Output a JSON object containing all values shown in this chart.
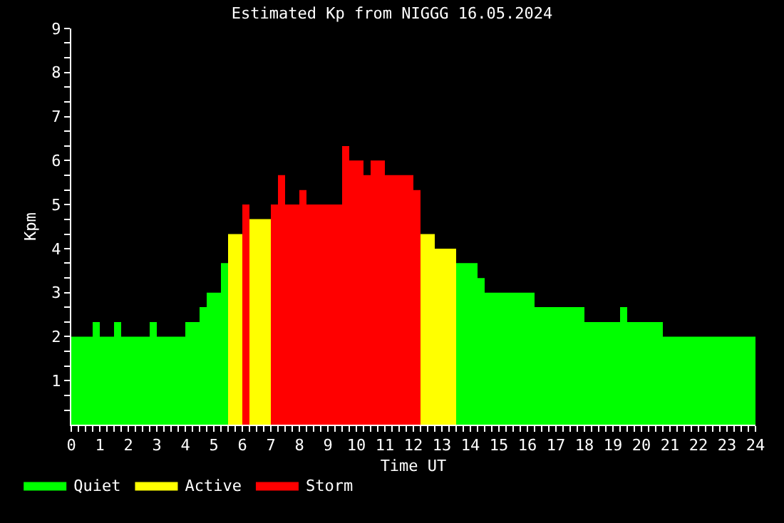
{
  "chart_data": {
    "type": "area",
    "title": "Estimated Kp from NIGGG 16.05.2024",
    "xlabel": "Time UT",
    "ylabel": "Kpm",
    "series": [
      {
        "name": "Quiet",
        "color": "#00ff00",
        "x": [
          0,
          0.75,
          0.75,
          1,
          1,
          1.5,
          1.5,
          1.75,
          1.75,
          2.75,
          2.75,
          3,
          3,
          4,
          4,
          4.5,
          4.5,
          4.75,
          4.75,
          5.25,
          5.25,
          5.5
        ],
        "values": [
          2,
          2,
          2.33,
          2.33,
          2,
          2,
          2.33,
          2.33,
          2,
          2,
          2.33,
          2.33,
          2,
          2,
          2.33,
          2.33,
          2.67,
          2.67,
          3,
          3,
          3.67,
          3.67
        ]
      },
      {
        "name": "Active",
        "color": "#ffff00",
        "x": [
          5.5,
          6
        ],
        "values": [
          4.33,
          4.33
        ]
      },
      {
        "name": "Storm",
        "color": "#ff0000",
        "x": [
          6,
          6.25
        ],
        "values": [
          5,
          5
        ]
      },
      {
        "color": "#ffff00",
        "x": [
          6.25,
          7
        ],
        "values": [
          4.67,
          4.67
        ]
      },
      {
        "color": "#ff0000",
        "x": [
          7,
          7.25,
          7.25,
          7.5,
          7.5,
          8,
          8,
          8.25,
          8.25,
          9.5,
          9.5,
          9.75,
          9.75,
          10.25,
          10.25,
          10.5,
          10.5,
          11,
          11,
          12,
          12,
          12.25
        ],
        "values": [
          5,
          5,
          5.67,
          5.67,
          5,
          5,
          5.33,
          5.33,
          5,
          5,
          6.33,
          6.33,
          6,
          6,
          5.67,
          5.67,
          6,
          6,
          5.67,
          5.67,
          5.33,
          5.33
        ]
      },
      {
        "color": "#ffff00",
        "x": [
          12.25,
          12.75,
          12.75,
          13.5
        ],
        "values": [
          4.33,
          4.33,
          4,
          4
        ]
      },
      {
        "color": "#00ff00",
        "x": [
          13.5,
          14.25,
          14.25,
          14.5,
          14.5,
          16.25,
          16.25,
          18,
          18,
          19.25,
          19.25,
          19.5,
          19.5,
          20.75,
          20.75,
          24
        ],
        "values": [
          3.67,
          3.67,
          3.33,
          3.33,
          3,
          3,
          2.67,
          2.67,
          2.33,
          2.33,
          2.67,
          2.67,
          2.33,
          2.33,
          2,
          2
        ]
      }
    ],
    "xlim": [
      0,
      24
    ],
    "xticks": [
      0,
      {
        "value": 0.25,
        "label": null
      },
      {
        "value": 0.5,
        "label": null
      },
      {
        "value": 0.75,
        "label": null
      },
      1,
      {
        "value": 1.25,
        "label": null
      },
      {
        "value": 1.5,
        "label": null
      },
      {
        "value": 1.75,
        "label": null
      },
      2,
      {
        "value": 2.25,
        "label": null
      },
      {
        "value": 2.5,
        "label": null
      },
      {
        "value": 2.75,
        "label": null
      },
      3,
      {
        "value": 3.25,
        "label": null
      },
      {
        "value": 3.5,
        "label": null
      },
      {
        "value": 3.75,
        "label": null
      },
      4,
      {
        "value": 4.25,
        "label": null
      },
      {
        "value": 4.5,
        "label": null
      },
      {
        "value": 4.75,
        "label": null
      },
      5,
      {
        "value": 5.25,
        "label": null
      },
      {
        "value": 5.5,
        "label": null
      },
      {
        "value": 5.75,
        "label": null
      },
      6,
      {
        "value": 6.25,
        "label": null
      },
      {
        "value": 6.5,
        "label": null
      },
      {
        "value": 6.75,
        "label": null
      },
      7,
      {
        "value": 7.25,
        "label": null
      },
      {
        "value": 7.5,
        "label": null
      },
      {
        "value": 7.75,
        "label": null
      },
      8,
      {
        "value": 8.25,
        "label": null
      },
      {
        "value": 8.5,
        "label": null
      },
      {
        "value": 8.75,
        "label": null
      },
      9,
      {
        "value": 9.25,
        "label": null
      },
      {
        "value": 9.5,
        "label": null
      },
      {
        "value": 9.75,
        "label": null
      },
      10,
      {
        "value": 10.25,
        "label": null
      },
      {
        "value": 10.5,
        "label": null
      },
      {
        "value": 10.75,
        "label": null
      },
      11,
      {
        "value": 11.25,
        "label": null
      },
      {
        "value": 11.5,
        "label": null
      },
      {
        "value": 11.75,
        "label": null
      },
      12,
      {
        "value": 12.25,
        "label": null
      },
      {
        "value": 12.5,
        "label": null
      },
      {
        "value": 12.75,
        "label": null
      },
      13,
      {
        "value": 13.25,
        "label": null
      },
      {
        "value": 13.5,
        "label": null
      },
      {
        "value": 13.75,
        "label": null
      },
      14,
      {
        "value": 14.25,
        "label": null
      },
      {
        "value": 14.5,
        "label": null
      },
      {
        "value": 14.75,
        "label": null
      },
      15,
      {
        "value": 15.25,
        "label": null
      },
      {
        "value": 15.5,
        "label": null
      },
      {
        "value": 15.75,
        "label": null
      },
      16,
      {
        "value": 16.25,
        "label": null
      },
      {
        "value": 16.5,
        "label": null
      },
      {
        "value": 16.75,
        "label": null
      },
      17,
      {
        "value": 17.25,
        "label": null
      },
      {
        "value": 17.5,
        "label": null
      },
      {
        "value": 17.75,
        "label": null
      },
      18,
      {
        "value": 18.25,
        "label": null
      },
      {
        "value": 18.5,
        "label": null
      },
      {
        "value": 18.75,
        "label": null
      },
      19,
      {
        "value": 19.25,
        "label": null
      },
      {
        "value": 19.5,
        "label": null
      },
      {
        "value": 19.75,
        "label": null
      },
      20,
      {
        "value": 20.25,
        "label": null
      },
      {
        "value": 20.5,
        "label": null
      },
      {
        "value": 20.75,
        "label": null
      },
      21,
      {
        "value": 21.25,
        "label": null
      },
      {
        "value": 21.5,
        "label": null
      },
      {
        "value": 21.75,
        "label": null
      },
      22,
      {
        "value": 22.25,
        "label": null
      },
      {
        "value": 22.5,
        "label": null
      },
      {
        "value": 22.75,
        "label": null
      },
      23,
      {
        "value": 23.25,
        "label": null
      },
      {
        "value": 23.5,
        "label": null
      },
      {
        "value": 23.75,
        "label": null
      },
      24
    ],
    "ylim": [
      0,
      9
    ],
    "yticks": [
      {
        "value": 0.33,
        "label": null
      },
      {
        "value": 0.67,
        "label": null
      },
      1,
      {
        "value": 1.33,
        "label": null
      },
      {
        "value": 1.67,
        "label": null
      },
      2,
      {
        "value": 2.33,
        "label": null
      },
      {
        "value": 2.67,
        "label": null
      },
      3,
      {
        "value": 3.33,
        "label": null
      },
      {
        "value": 3.67,
        "label": null
      },
      4,
      {
        "value": 4.33,
        "label": null
      },
      {
        "value": 4.67,
        "label": null
      },
      5,
      {
        "value": 5.33,
        "label": null
      },
      {
        "value": 5.67,
        "label": null
      },
      6,
      {
        "value": 6.33,
        "label": null
      },
      {
        "value": 6.67,
        "label": null
      },
      7,
      {
        "value": 7.33,
        "label": null
      },
      {
        "value": 7.67,
        "label": null
      },
      8,
      {
        "value": 8.33,
        "label": null
      },
      {
        "value": 8.67,
        "label": null
      },
      9
    ],
    "legend": "bottom left",
    "grid": false
  }
}
